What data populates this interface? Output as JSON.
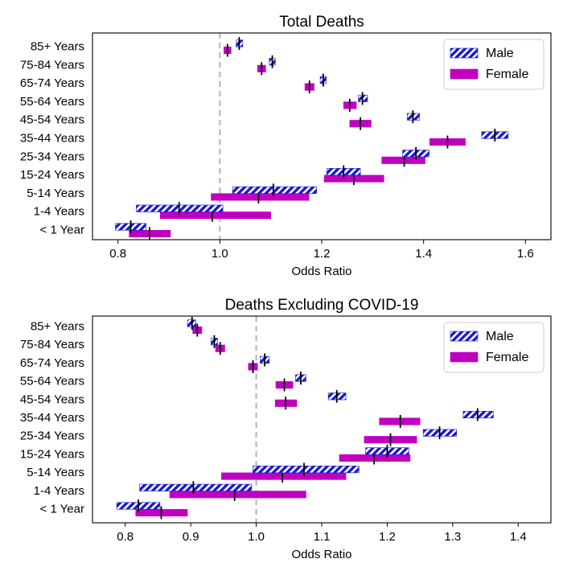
{
  "chart_data": [
    {
      "type": "bar",
      "title": "Total Deaths",
      "xlabel": "Odds Ratio",
      "ylabel": "",
      "xlim": [
        0.75,
        1.65
      ],
      "xticks": [
        "0.8",
        "1.0",
        "1.2",
        "1.4",
        "1.6"
      ],
      "xtick_values": [
        0.8,
        1.0,
        1.2,
        1.4,
        1.6
      ],
      "reference_line": 1.0,
      "grid": false,
      "legend_position": "top-right",
      "categories": [
        "85+ Years",
        "75-84 Years",
        "65-74 Years",
        "55-64 Years",
        "45-54 Years",
        "35-44 Years",
        "25-34 Years",
        "15-24 Years",
        "5-14 Years",
        "1-4 Years",
        "< 1 Year"
      ],
      "series": [
        {
          "name": "Male",
          "color": "#1a1acc",
          "pattern": "hatched",
          "estimate": [
            1.038,
            1.103,
            1.203,
            1.28,
            1.379,
            1.54,
            1.385,
            1.243,
            1.105,
            0.92,
            0.825
          ],
          "lower": [
            1.032,
            1.097,
            1.197,
            1.272,
            1.368,
            1.514,
            1.359,
            1.21,
            1.025,
            0.836,
            0.795
          ],
          "upper": [
            1.045,
            1.109,
            1.209,
            1.29,
            1.392,
            1.566,
            1.411,
            1.276,
            1.19,
            1.006,
            0.855
          ]
        },
        {
          "name": "Female",
          "color": "#c000c0",
          "pattern": "solid",
          "estimate": [
            1.015,
            1.082,
            1.176,
            1.255,
            1.276,
            1.447,
            1.362,
            1.263,
            1.076,
            0.985,
            0.862
          ],
          "lower": [
            1.008,
            1.074,
            1.167,
            1.243,
            1.255,
            1.412,
            1.318,
            1.205,
            0.983,
            0.883,
            0.822
          ],
          "upper": [
            1.022,
            1.09,
            1.185,
            1.268,
            1.297,
            1.482,
            1.403,
            1.322,
            1.175,
            1.1,
            0.903
          ]
        }
      ]
    },
    {
      "type": "bar",
      "title": "Deaths Excluding COVID-19",
      "xlabel": "Odds Ratio",
      "ylabel": "",
      "xlim": [
        0.75,
        1.45
      ],
      "xticks": [
        "0.8",
        "0.9",
        "1.0",
        "1.1",
        "1.2",
        "1.3",
        "1.4"
      ],
      "xtick_values": [
        0.8,
        0.9,
        1.0,
        1.1,
        1.2,
        1.3,
        1.4
      ],
      "reference_line": 1.0,
      "grid": false,
      "legend_position": "top-right",
      "categories": [
        "85+ Years",
        "75-84 Years",
        "65-74 Years",
        "55-64 Years",
        "45-54 Years",
        "35-44 Years",
        "25-34 Years",
        "15-24 Years",
        "5-14 Years",
        "1-4 Years",
        "< 1 Year"
      ],
      "series": [
        {
          "name": "Male",
          "color": "#1a1acc",
          "pattern": "hatched",
          "estimate": [
            0.902,
            0.936,
            1.013,
            1.068,
            1.123,
            1.338,
            1.28,
            1.2,
            1.073,
            0.904,
            0.82
          ],
          "lower": [
            0.895,
            0.931,
            1.006,
            1.06,
            1.11,
            1.316,
            1.255,
            1.167,
            0.995,
            0.822,
            0.787
          ],
          "upper": [
            0.908,
            0.941,
            1.02,
            1.076,
            1.137,
            1.362,
            1.306,
            1.233,
            1.157,
            0.993,
            0.853
          ]
        },
        {
          "name": "Female",
          "color": "#c000c0",
          "pattern": "solid",
          "estimate": [
            0.91,
            0.945,
            0.995,
            1.043,
            1.045,
            1.22,
            1.205,
            1.18,
            1.04,
            0.967,
            0.855
          ],
          "lower": [
            0.903,
            0.938,
            0.988,
            1.03,
            1.029,
            1.188,
            1.165,
            1.127,
            0.947,
            0.868,
            0.816
          ],
          "upper": [
            0.917,
            0.952,
            1.002,
            1.056,
            1.062,
            1.25,
            1.245,
            1.235,
            1.137,
            1.076,
            0.895
          ]
        }
      ]
    }
  ]
}
